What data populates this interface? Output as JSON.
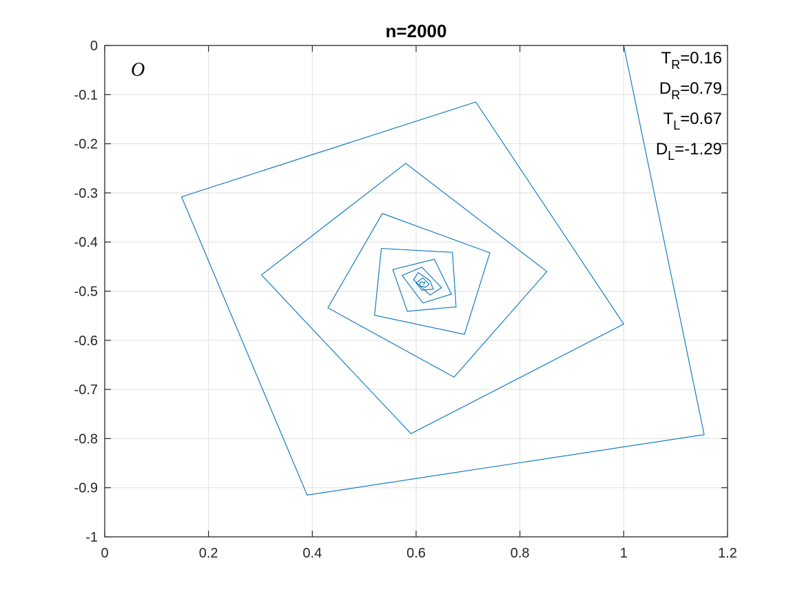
{
  "chart_data": {
    "type": "line",
    "title": "n=2000",
    "xlabel": "",
    "ylabel": "",
    "xlim": [
      0,
      1.2
    ],
    "ylim": [
      -1,
      0
    ],
    "xticks": [
      0,
      0.2,
      0.4,
      0.6,
      0.8,
      1,
      1.2
    ],
    "xtick_labels": [
      "0",
      "0.2",
      "0.4",
      "0.6",
      "0.8",
      "1",
      "1.2"
    ],
    "yticks": [
      0,
      -0.1,
      -0.2,
      -0.3,
      -0.4,
      -0.5,
      -0.6,
      -0.7,
      -0.8,
      -0.9,
      -1
    ],
    "ytick_labels": [
      "0",
      "-0.1",
      "-0.2",
      "-0.3",
      "-0.4",
      "-0.5",
      "-0.6",
      "-0.7",
      "-0.8",
      "-0.9",
      "-1"
    ],
    "grid": true,
    "line_color": "#0072BD",
    "corner_label": "O",
    "annotations": [
      {
        "base": "T",
        "sub": "R",
        "value": "=0.16"
      },
      {
        "base": "D",
        "sub": "R",
        "value": "=0.79"
      },
      {
        "base": "T",
        "sub": "L",
        "value": "=0.67"
      },
      {
        "base": "D",
        "sub": "L",
        "value": "=-1.29"
      }
    ],
    "series": [
      {
        "x": [
          0,
          1.0,
          1.155,
          0.39,
          0.148,
          0.715,
          1.0,
          0.59,
          0.302,
          0.58,
          0.852,
          0.673,
          0.43,
          0.535,
          0.742,
          0.693,
          0.52,
          0.533,
          0.67,
          0.677,
          0.583,
          0.555,
          0.635,
          0.668,
          0.613,
          0.573,
          0.611,
          0.649,
          0.627,
          0.595,
          0.604,
          0.627,
          0.633,
          0.611,
          0.6,
          0.613,
          0.625,
          0.618,
          0.607,
          0.608,
          0.617,
          0.614
        ],
        "y": [
          0,
          0,
          -0.792,
          -0.915,
          -0.308,
          -0.115,
          -0.567,
          -0.79,
          -0.467,
          -0.24,
          -0.46,
          -0.675,
          -0.534,
          -0.342,
          -0.422,
          -0.588,
          -0.549,
          -0.413,
          -0.421,
          -0.532,
          -0.541,
          -0.456,
          -0.435,
          -0.506,
          -0.524,
          -0.468,
          -0.451,
          -0.493,
          -0.508,
          -0.477,
          -0.462,
          -0.479,
          -0.496,
          -0.498,
          -0.483,
          -0.473,
          -0.486,
          -0.492,
          -0.489,
          -0.481,
          -0.482,
          -0.487
        ]
      }
    ]
  }
}
